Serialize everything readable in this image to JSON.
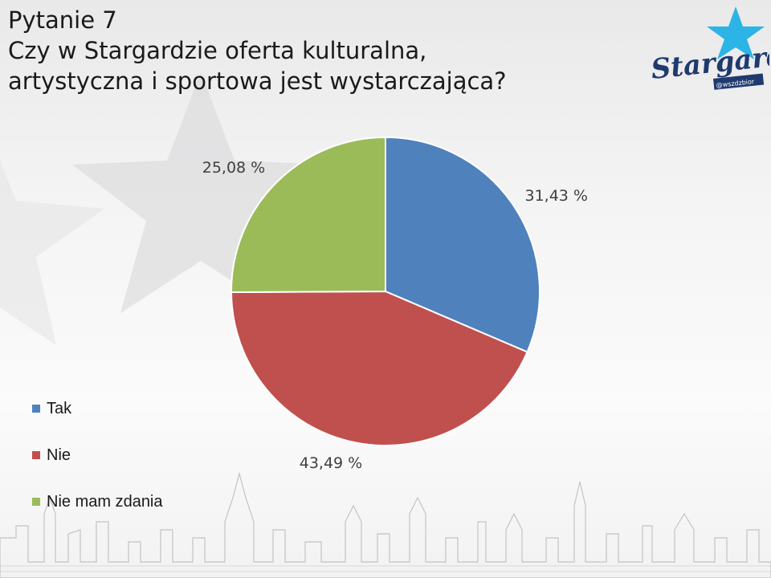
{
  "slide": {
    "title_lines": [
      "Pytanie 7",
      "Czy w Stargardzie oferta kulturalna,",
      "artystyczna i sportowa jest wystarczająca?"
    ]
  },
  "logo": {
    "wordmark": "Stargard",
    "tagline": "@wszdzbior"
  },
  "chart_data": {
    "type": "pie",
    "categories": [
      "Tak",
      "Nie",
      "Nie mam zdania"
    ],
    "values": [
      31.43,
      43.49,
      25.08
    ],
    "data_labels": [
      "31,43 %",
      "43,49 %",
      "25,08 %"
    ],
    "colors": [
      "#4f81bd",
      "#c0504d",
      "#9bbb59"
    ],
    "legend_position": "bottom-left"
  }
}
